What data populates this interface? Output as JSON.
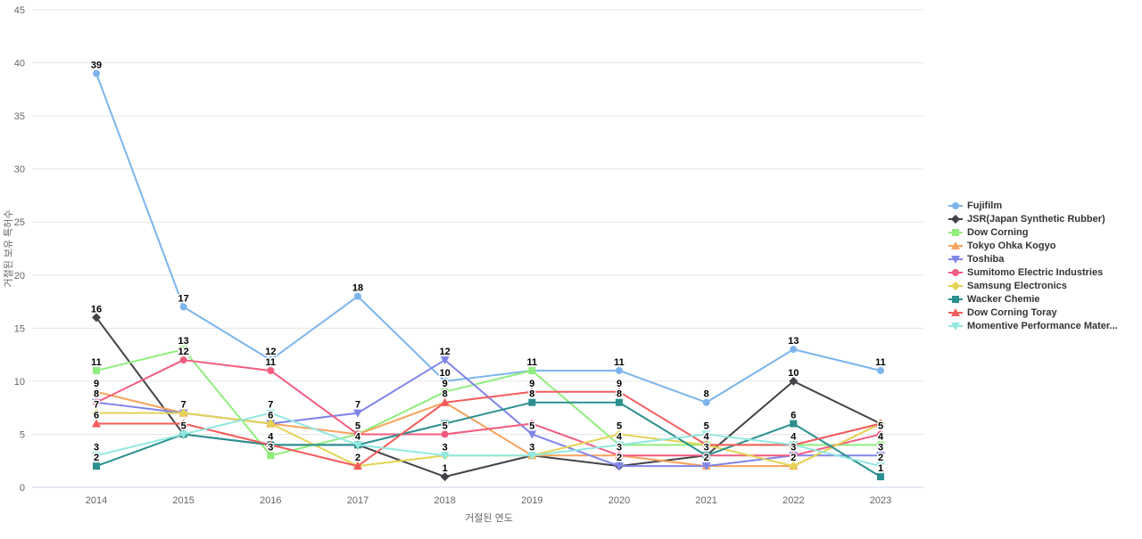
{
  "chart_data": {
    "type": "line",
    "title": "",
    "xlabel": "거절된 연도",
    "ylabel": "거절된 보유 특허수",
    "x": [
      2014,
      2015,
      2016,
      2017,
      2018,
      2019,
      2020,
      2021,
      2022,
      2023
    ],
    "ylim": [
      0,
      45
    ],
    "y_ticks": [
      0,
      5,
      10,
      15,
      20,
      25,
      30,
      35,
      40,
      45
    ],
    "grid": true,
    "legend_position": "right",
    "colors": {
      "grid_line": "#e6e6e6",
      "axis_line": "#ccd6eb",
      "tick_text": "#666666",
      "legend_text": "#333333",
      "data_label": "#000000"
    },
    "series": [
      {
        "name": "Fujifilm",
        "color": "#7cb5ec",
        "marker": "circle",
        "values": [
          39,
          17,
          12,
          18,
          10,
          11,
          11,
          8,
          13,
          11
        ],
        "label_shown": [
          true,
          true,
          true,
          true,
          true,
          true,
          true,
          true,
          true,
          true
        ]
      },
      {
        "name": "JSR(Japan Synthetic Rubber)",
        "color": "#434348",
        "marker": "diamond",
        "values": [
          16,
          5,
          4,
          4,
          1,
          3,
          2,
          3,
          10,
          6
        ],
        "label_shown": [
          true,
          true,
          true,
          true,
          true,
          true,
          true,
          true,
          true,
          false
        ]
      },
      {
        "name": "Dow Corning",
        "color": "#90ed7d",
        "marker": "square",
        "values": [
          11,
          13,
          3,
          5,
          9,
          11,
          4,
          4,
          4,
          4
        ],
        "label_shown": [
          true,
          true,
          true,
          true,
          true,
          false,
          true,
          true,
          true,
          true
        ]
      },
      {
        "name": "Tokyo Ohka Kogyo",
        "color": "#f7a35c",
        "marker": "triangle",
        "values": [
          9,
          7,
          6,
          5,
          8,
          3,
          3,
          2,
          2,
          6
        ],
        "label_shown": [
          true,
          true,
          true,
          false,
          true,
          false,
          true,
          true,
          true,
          false
        ]
      },
      {
        "name": "Toshiba",
        "color": "#8085e9",
        "marker": "triangle-down",
        "values": [
          8,
          7,
          6,
          7,
          12,
          5,
          2,
          2,
          3,
          3
        ],
        "label_shown": [
          false,
          false,
          false,
          true,
          true,
          true,
          false,
          false,
          true,
          true
        ]
      },
      {
        "name": "Sumitomo Electric Industries",
        "color": "#f15c80",
        "marker": "circle",
        "values": [
          8,
          12,
          11,
          5,
          5,
          6,
          3,
          3,
          3,
          5
        ],
        "label_shown": [
          true,
          true,
          true,
          false,
          true,
          false,
          false,
          false,
          false,
          true
        ]
      },
      {
        "name": "Samsung Electronics",
        "color": "#e4d354",
        "marker": "diamond",
        "values": [
          7,
          7,
          6,
          2,
          3,
          3,
          5,
          4,
          2,
          6
        ],
        "label_shown": [
          true,
          false,
          false,
          true,
          true,
          false,
          true,
          false,
          false,
          false
        ]
      },
      {
        "name": "Wacker Chemie",
        "color": "#2b908f",
        "marker": "square",
        "values": [
          2,
          5,
          4,
          4,
          6,
          8,
          8,
          3,
          6,
          1
        ],
        "label_shown": [
          true,
          false,
          false,
          false,
          false,
          true,
          true,
          false,
          true,
          true
        ]
      },
      {
        "name": "Dow Corning Toray",
        "color": "#f45b5b",
        "marker": "triangle",
        "values": [
          6,
          6,
          4,
          2,
          8,
          9,
          9,
          4,
          4,
          6
        ],
        "label_shown": [
          true,
          false,
          false,
          false,
          false,
          true,
          true,
          false,
          false,
          false
        ]
      },
      {
        "name": "Momentive Performance Mater...",
        "color": "#91e8e1",
        "marker": "triangle-down",
        "values": [
          3,
          5,
          7,
          4,
          3,
          3,
          4,
          5,
          4,
          2
        ],
        "label_shown": [
          true,
          false,
          true,
          false,
          false,
          false,
          false,
          true,
          false,
          true
        ]
      }
    ]
  }
}
